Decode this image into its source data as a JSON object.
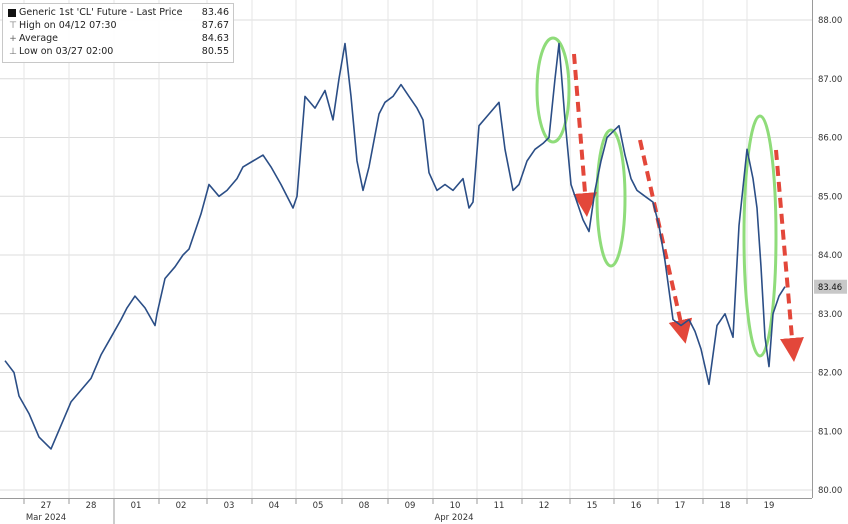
{
  "legend": {
    "title": "Generic 1st 'CL' Future - Last Price",
    "last_value": "83.46",
    "high_label": "High on 04/12 07:30",
    "high_value": "87.67",
    "avg_label": "Average",
    "avg_value": "84.63",
    "low_label": "Low on 03/27 02:00",
    "low_value": "80.55"
  },
  "last_price_tag": "83.46",
  "colors": {
    "line": "#2b4e86",
    "tag": "#c8c8c8",
    "highlight_ellipse": "#8fdc7a",
    "trend_arrow": "#e3473a"
  },
  "chart_data": {
    "type": "line",
    "title": "Generic 1st 'CL' Future - Last Price",
    "ylim": [
      80.0,
      88.0
    ],
    "y_ticks": [
      "80.00",
      "81.00",
      "82.00",
      "83.00",
      "84.00",
      "85.00",
      "86.00",
      "87.00",
      "88.00"
    ],
    "x_ticks": [
      "27",
      "28",
      "01",
      "02",
      "03",
      "04",
      "05",
      "08",
      "09",
      "10",
      "11",
      "12",
      "15",
      "16",
      "17",
      "18",
      "19"
    ],
    "x_month_labels": [
      "Mar 2024",
      "Apr 2024"
    ],
    "grid": true,
    "x_positions": [
      0,
      9,
      14,
      24,
      34,
      46,
      56,
      66,
      76,
      86,
      96,
      106,
      116,
      122,
      130,
      140,
      150,
      152,
      160,
      170,
      178,
      184,
      196,
      204,
      214,
      222,
      232,
      238,
      248,
      258,
      266,
      276,
      282,
      288,
      292,
      300,
      310,
      320,
      328,
      334,
      340,
      346,
      352,
      358,
      364,
      374,
      380,
      388,
      396,
      404,
      412,
      418,
      424,
      432,
      440,
      448,
      458,
      464,
      468,
      474,
      484,
      494,
      500,
      508,
      514,
      522,
      530,
      538,
      544,
      550,
      554,
      560,
      566,
      572,
      578,
      584,
      590,
      596,
      602,
      608,
      614,
      620,
      626,
      632,
      640,
      648,
      654,
      660,
      668,
      676,
      684,
      690,
      696,
      704,
      712,
      720,
      728,
      734,
      742,
      748,
      752,
      756,
      760,
      764,
      768,
      774,
      780,
      786,
      792
    ],
    "series": [
      {
        "values": [
          82.2,
          82.0,
          81.6,
          81.3,
          80.9,
          80.7,
          81.1,
          81.5,
          81.7,
          81.9,
          82.3,
          82.6,
          82.9,
          83.1,
          83.3,
          83.1,
          82.8,
          83.0,
          83.6,
          83.8,
          84.0,
          84.1,
          84.7,
          85.2,
          85.0,
          85.1,
          85.3,
          85.5,
          85.6,
          85.7,
          85.5,
          85.2,
          85.0,
          84.8,
          85.0,
          86.7,
          86.5,
          86.8,
          86.3,
          87.0,
          87.6,
          86.7,
          85.6,
          85.1,
          85.5,
          86.4,
          86.6,
          86.7,
          86.9,
          86.7,
          86.5,
          86.3,
          85.4,
          85.1,
          85.2,
          85.1,
          85.3,
          84.8,
          84.9,
          86.2,
          86.4,
          86.6,
          85.8,
          85.1,
          85.2,
          85.6,
          85.8,
          85.9,
          86.0,
          87.0,
          87.6,
          86.3,
          85.2,
          84.9,
          84.6,
          84.4,
          85.1,
          85.6,
          86.0,
          86.1,
          86.2,
          85.7,
          85.3,
          85.1,
          85.0,
          84.9,
          84.5,
          83.9,
          82.9,
          82.8,
          82.9,
          82.7,
          82.4,
          81.8,
          82.8,
          83.0,
          82.6,
          84.5,
          85.8,
          85.3,
          84.8,
          83.8,
          82.6,
          82.1,
          83.0,
          83.3,
          83.46
        ]
      }
    ]
  }
}
